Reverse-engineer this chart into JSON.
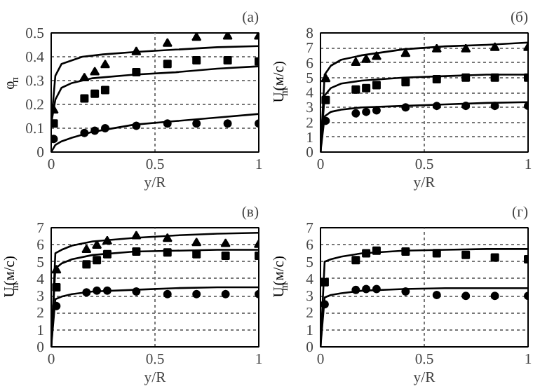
{
  "chart_data": [
    {
      "type": "scatter",
      "title": "(а)",
      "xlabel": "y/R",
      "ylabel": "φ$_{п}$",
      "xlim": [
        0,
        1
      ],
      "ylim": [
        0,
        0.5
      ],
      "xticks": [
        0,
        0.5,
        1
      ],
      "yticks": [
        0,
        0.1,
        0.2,
        0.3,
        0.4,
        0.5
      ],
      "grid": true,
      "series": [
        {
          "type": "scatter",
          "marker": "triangle",
          "color": "#000000",
          "x": [
            0.012,
            0.16,
            0.21,
            0.26,
            0.41,
            0.56,
            0.7,
            0.85,
            1.0
          ],
          "values": [
            0.175,
            0.31,
            0.335,
            0.365,
            0.42,
            0.455,
            0.48,
            0.485,
            0.485
          ]
        },
        {
          "type": "scatter",
          "marker": "square",
          "color": "#000000",
          "x": [
            0.012,
            0.16,
            0.21,
            0.26,
            0.41,
            0.56,
            0.7,
            0.85,
            1.0
          ],
          "values": [
            0.12,
            0.225,
            0.245,
            0.26,
            0.335,
            0.37,
            0.385,
            0.385,
            0.38
          ]
        },
        {
          "type": "scatter",
          "marker": "circle",
          "color": "#000000",
          "x": [
            0.012,
            0.16,
            0.21,
            0.26,
            0.41,
            0.56,
            0.7,
            0.85,
            1.0
          ],
          "values": [
            0.055,
            0.08,
            0.09,
            0.1,
            0.11,
            0.12,
            0.12,
            0.12,
            0.12
          ]
        },
        {
          "type": "line",
          "color": "#000000",
          "x": [
            0,
            0.02,
            0.05,
            0.15,
            0.25,
            0.4,
            0.6,
            0.8,
            1
          ],
          "values": [
            0.12,
            0.32,
            0.37,
            0.4,
            0.41,
            0.42,
            0.43,
            0.44,
            0.445
          ]
        },
        {
          "type": "line",
          "color": "#000000",
          "x": [
            0,
            0.02,
            0.05,
            0.1,
            0.2,
            0.4,
            0.6,
            0.8,
            1
          ],
          "values": [
            0.12,
            0.22,
            0.27,
            0.29,
            0.31,
            0.325,
            0.335,
            0.35,
            0.36
          ]
        },
        {
          "type": "line",
          "color": "#000000",
          "x": [
            0,
            0.02,
            0.05,
            0.1,
            0.2,
            0.4,
            0.6,
            0.8,
            1
          ],
          "values": [
            0,
            0.03,
            0.045,
            0.06,
            0.085,
            0.115,
            0.13,
            0.145,
            0.16
          ]
        }
      ]
    },
    {
      "type": "scatter",
      "title": "(б)",
      "xlabel": "y/R",
      "ylabel": "U$_{m}$(м/с)",
      "xlim": [
        0,
        1
      ],
      "ylim": [
        0,
        8
      ],
      "xticks": [
        0,
        0.5,
        1
      ],
      "yticks": [
        0,
        1,
        2,
        3,
        4,
        5,
        6,
        7,
        8
      ],
      "grid": true,
      "series": [
        {
          "type": "scatter",
          "marker": "triangle",
          "color": "#000000",
          "x": [
            0.025,
            0.17,
            0.22,
            0.27,
            0.41,
            0.56,
            0.7,
            0.84,
            1.0
          ],
          "values": [
            4.9,
            6.0,
            6.2,
            6.4,
            6.6,
            6.9,
            6.9,
            7.0,
            7.0
          ]
        },
        {
          "type": "scatter",
          "marker": "square",
          "color": "#000000",
          "x": [
            0.025,
            0.17,
            0.22,
            0.27,
            0.41,
            0.56,
            0.7,
            0.84,
            1.0
          ],
          "values": [
            3.5,
            4.2,
            4.3,
            4.5,
            4.7,
            4.9,
            5.0,
            5.0,
            5.0
          ]
        },
        {
          "type": "scatter",
          "marker": "circle",
          "color": "#000000",
          "x": [
            0.025,
            0.17,
            0.22,
            0.27,
            0.41,
            0.56,
            0.7,
            0.84,
            1.0
          ],
          "values": [
            2.1,
            2.6,
            2.7,
            2.8,
            3.0,
            3.1,
            3.1,
            3.1,
            3.1
          ]
        },
        {
          "type": "line",
          "color": "#000000",
          "x": [
            0,
            0.02,
            0.05,
            0.1,
            0.2,
            0.4,
            0.6,
            0.8,
            1
          ],
          "values": [
            0,
            5.2,
            5.8,
            6.2,
            6.5,
            6.9,
            7.1,
            7.2,
            7.35
          ]
        },
        {
          "type": "line",
          "color": "#000000",
          "x": [
            0,
            0.02,
            0.05,
            0.1,
            0.2,
            0.4,
            0.6,
            0.8,
            1
          ],
          "values": [
            0,
            3.8,
            4.3,
            4.6,
            4.8,
            5.0,
            5.1,
            5.2,
            5.2
          ]
        },
        {
          "type": "line",
          "color": "#000000",
          "x": [
            0,
            0.02,
            0.05,
            0.1,
            0.2,
            0.4,
            0.6,
            0.8,
            1
          ],
          "values": [
            0,
            2.4,
            2.7,
            2.85,
            3.0,
            3.1,
            3.2,
            3.3,
            3.35
          ]
        }
      ]
    },
    {
      "type": "scatter",
      "title": "(в)",
      "xlabel": "y/R",
      "ylabel": "U$_{m}$(м/с)",
      "xlim": [
        0,
        1
      ],
      "ylim": [
        0,
        7
      ],
      "xticks": [
        0,
        0.5,
        1
      ],
      "yticks": [
        0,
        1,
        2,
        3,
        4,
        5,
        6,
        7
      ],
      "grid": true,
      "series": [
        {
          "type": "scatter",
          "marker": "triangle",
          "color": "#000000",
          "x": [
            0.025,
            0.17,
            0.22,
            0.27,
            0.41,
            0.56,
            0.7,
            0.84,
            1.0
          ],
          "values": [
            4.5,
            5.7,
            5.95,
            6.2,
            6.5,
            6.35,
            6.1,
            6.05,
            6.0
          ]
        },
        {
          "type": "scatter",
          "marker": "square",
          "color": "#000000",
          "x": [
            0.025,
            0.17,
            0.22,
            0.27,
            0.41,
            0.56,
            0.7,
            0.84,
            1.0
          ],
          "values": [
            3.5,
            4.85,
            5.1,
            5.45,
            5.6,
            5.55,
            5.45,
            5.35,
            5.35
          ]
        },
        {
          "type": "scatter",
          "marker": "circle",
          "color": "#000000",
          "x": [
            0.025,
            0.17,
            0.22,
            0.27,
            0.41,
            0.56,
            0.7,
            0.84,
            1.0
          ],
          "values": [
            2.4,
            3.2,
            3.3,
            3.3,
            3.25,
            3.1,
            3.1,
            3.1,
            3.1
          ]
        },
        {
          "type": "line",
          "color": "#000000",
          "x": [
            0,
            0.02,
            0.05,
            0.1,
            0.2,
            0.4,
            0.6,
            0.8,
            1
          ],
          "values": [
            0,
            5.5,
            5.7,
            5.95,
            6.2,
            6.4,
            6.55,
            6.65,
            6.7
          ]
        },
        {
          "type": "line",
          "color": "#000000",
          "x": [
            0,
            0.02,
            0.05,
            0.1,
            0.2,
            0.4,
            0.6,
            0.8,
            1
          ],
          "values": [
            0,
            4.6,
            4.9,
            5.15,
            5.4,
            5.6,
            5.65,
            5.7,
            5.7
          ]
        },
        {
          "type": "line",
          "color": "#000000",
          "x": [
            0,
            0.02,
            0.05,
            0.1,
            0.2,
            0.4,
            0.6,
            0.8,
            1
          ],
          "values": [
            0,
            2.8,
            2.95,
            3.1,
            3.25,
            3.35,
            3.45,
            3.5,
            3.5
          ]
        }
      ]
    },
    {
      "type": "scatter",
      "title": "(г)",
      "xlabel": "y/R",
      "ylabel": "U$_{m}$(м/с)",
      "xlim": [
        0,
        1
      ],
      "ylim": [
        0,
        7
      ],
      "xticks": [
        0,
        0.5,
        1
      ],
      "yticks": [
        0,
        1,
        2,
        3,
        4,
        5,
        6,
        7
      ],
      "grid": true,
      "series": [
        {
          "type": "scatter",
          "marker": "square",
          "color": "#000000",
          "x": [
            0.02,
            0.17,
            0.22,
            0.27,
            0.41,
            0.56,
            0.7,
            0.84,
            1.0
          ],
          "values": [
            3.8,
            5.1,
            5.5,
            5.65,
            5.6,
            5.5,
            5.4,
            5.25,
            5.15
          ]
        },
        {
          "type": "scatter",
          "marker": "circle",
          "color": "#000000",
          "x": [
            0.02,
            0.17,
            0.22,
            0.27,
            0.41,
            0.56,
            0.7,
            0.84,
            1.0
          ],
          "values": [
            2.5,
            3.35,
            3.4,
            3.4,
            3.25,
            3.05,
            3.0,
            3.0,
            3.0
          ]
        },
        {
          "type": "line",
          "color": "#000000",
          "x": [
            0,
            0.02,
            0.05,
            0.1,
            0.2,
            0.4,
            0.6,
            0.8,
            1
          ],
          "values": [
            0,
            5.0,
            5.15,
            5.3,
            5.5,
            5.65,
            5.7,
            5.75,
            5.75
          ]
        },
        {
          "type": "line",
          "color": "#000000",
          "x": [
            0,
            0.02,
            0.05,
            0.1,
            0.2,
            0.4,
            0.6,
            0.8,
            1
          ],
          "values": [
            0,
            2.9,
            3.05,
            3.15,
            3.3,
            3.4,
            3.45,
            3.45,
            3.45
          ]
        }
      ]
    }
  ]
}
